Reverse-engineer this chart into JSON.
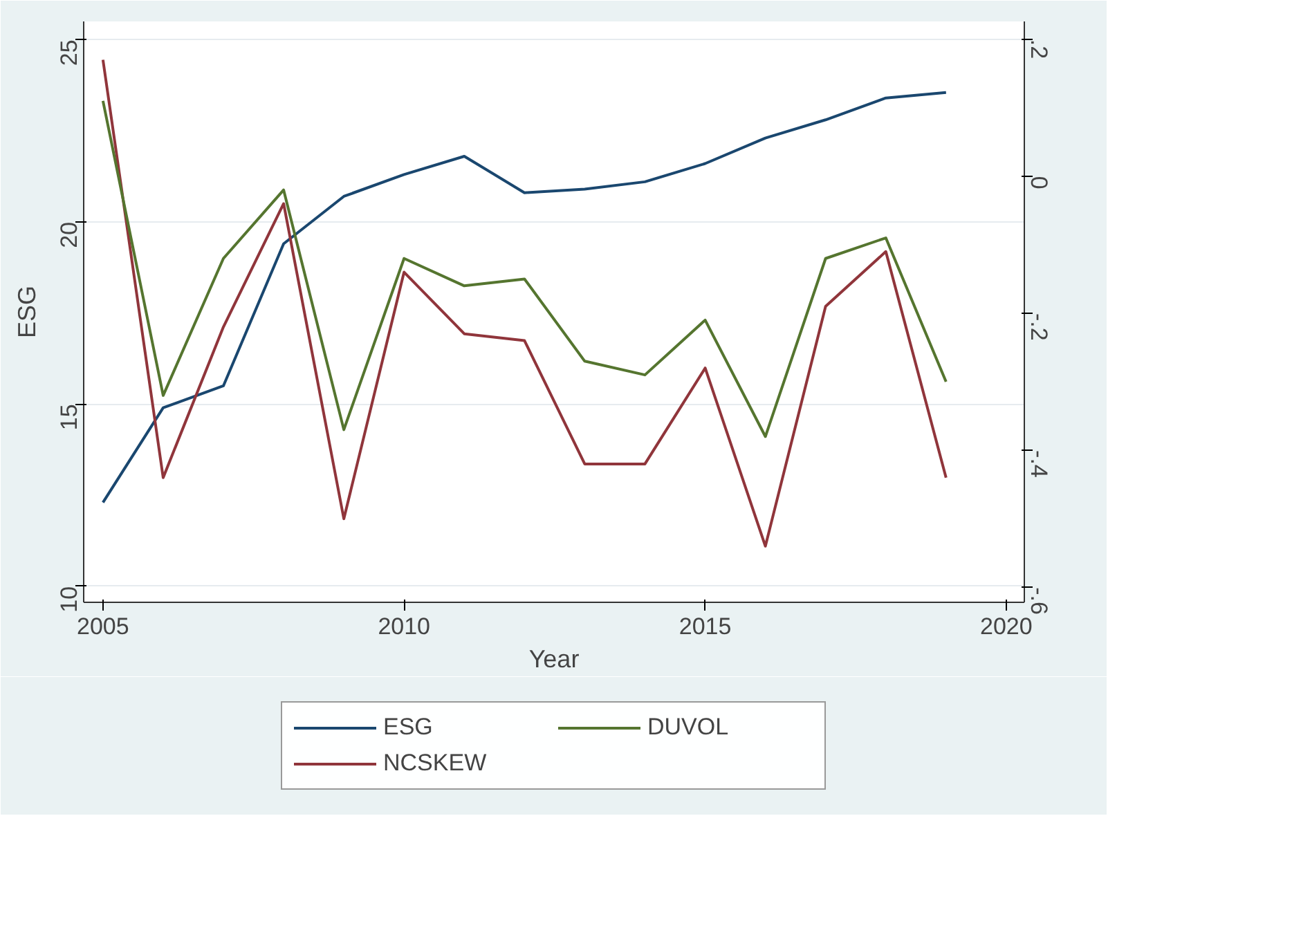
{
  "chart_data": {
    "type": "line",
    "xlabel": "Year",
    "ylabel": "ESG",
    "x": [
      2005,
      2006,
      2007,
      2008,
      2009,
      2010,
      2011,
      2012,
      2013,
      2014,
      2015,
      2016,
      2017,
      2018,
      2019
    ],
    "series": [
      {
        "name": "ESG",
        "color": "#1a476f",
        "values": [
          12.3,
          14.9,
          15.5,
          19.4,
          20.7,
          21.3,
          21.8,
          20.8,
          20.9,
          21.1,
          21.6,
          22.3,
          22.8,
          23.4,
          23.55
        ]
      },
      {
        "name": "NCSKEW",
        "color": "#90353b",
        "axis": "y2",
        "values": [
          0.17,
          -0.44,
          -0.22,
          -0.04,
          -0.5,
          -0.14,
          -0.23,
          -0.24,
          -0.42,
          -0.42,
          -0.28,
          -0.54,
          -0.19,
          -0.11,
          -0.44
        ]
      },
      {
        "name": "DUVOL",
        "color": "#55752f",
        "axis": "y2",
        "values": [
          0.11,
          -0.32,
          -0.12,
          -0.02,
          -0.37,
          -0.12,
          -0.16,
          -0.15,
          -0.27,
          -0.29,
          -0.21,
          -0.38,
          -0.12,
          -0.09,
          -0.3
        ]
      }
    ],
    "xlim": [
      2004.68,
      2020.3
    ],
    "xticks": [
      2005,
      2010,
      2015,
      2020
    ],
    "ylim": [
      9.56,
      25.5
    ],
    "yticks": [
      10,
      15,
      20,
      25
    ],
    "y2lim": [
      -0.622,
      0.226
    ],
    "y2ticks": [
      {
        "value": -0.6,
        "label": "-.6"
      },
      {
        "value": -0.4,
        "label": "-.4"
      },
      {
        "value": -0.2,
        "label": "-.2"
      },
      {
        "value": 0,
        "label": "0"
      },
      {
        "value": 0.2,
        "label": ".2"
      }
    ],
    "grid": "y",
    "legend": "bottom",
    "marker": "none",
    "line_style": "solid"
  }
}
